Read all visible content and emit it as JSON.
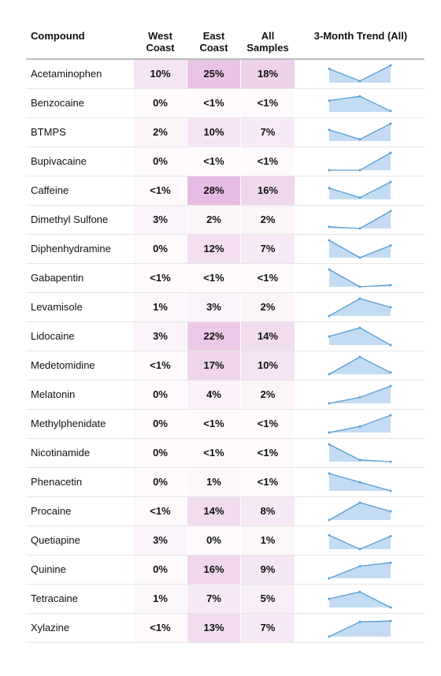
{
  "chart_data": {
    "type": "table",
    "columns": [
      "Compound",
      "West Coast",
      "East Coast",
      "All Samples",
      "3-Month Trend (All)"
    ],
    "header_lines": {
      "compound": "Compound",
      "west": [
        "West",
        "Coast"
      ],
      "east": [
        "East",
        "Coast"
      ],
      "all": [
        "All",
        "Samples"
      ],
      "trend": "3-Month Trend (All)"
    },
    "colors": {
      "heat_max": "#c86fbf",
      "spark_line": "#5a9fd4",
      "spark_fill": "#c3dcf3"
    },
    "rows": [
      {
        "compound": "Acetaminophen",
        "west": "10%",
        "east": "25%",
        "all": "18%",
        "trend": [
          0.8,
          0.1,
          1.0
        ]
      },
      {
        "compound": "Benzocaine",
        "west": "0%",
        "east": "<1%",
        "all": "<1%",
        "trend": [
          0.65,
          0.9,
          0.05
        ]
      },
      {
        "compound": "BTMPS",
        "west": "2%",
        "east": "10%",
        "all": "7%",
        "trend": [
          0.65,
          0.1,
          1.0
        ]
      },
      {
        "compound": "Bupivacaine",
        "west": "0%",
        "east": "<1%",
        "all": "<1%",
        "trend": [
          0.0,
          0.0,
          1.0
        ]
      },
      {
        "compound": "Caffeine",
        "west": "<1%",
        "east": "28%",
        "all": "16%",
        "trend": [
          0.65,
          0.1,
          1.0
        ]
      },
      {
        "compound": "Dimethyl Sulfone",
        "west": "3%",
        "east": "2%",
        "all": "2%",
        "trend": [
          0.1,
          0.0,
          1.0
        ]
      },
      {
        "compound": "Diphenhydramine",
        "west": "0%",
        "east": "12%",
        "all": "7%",
        "trend": [
          1.0,
          0.0,
          0.7
        ]
      },
      {
        "compound": "Gabapentin",
        "west": "<1%",
        "east": "<1%",
        "all": "<1%",
        "trend": [
          1.0,
          0.0,
          0.1
        ]
      },
      {
        "compound": "Levamisole",
        "west": "1%",
        "east": "3%",
        "all": "2%",
        "trend": [
          0.0,
          1.0,
          0.5
        ]
      },
      {
        "compound": "Lidocaine",
        "west": "3%",
        "east": "22%",
        "all": "14%",
        "trend": [
          0.5,
          1.0,
          0.0
        ]
      },
      {
        "compound": "Medetomidine",
        "west": "<1%",
        "east": "17%",
        "all": "10%",
        "trend": [
          0.0,
          1.0,
          0.1
        ]
      },
      {
        "compound": "Melatonin",
        "west": "0%",
        "east": "4%",
        "all": "2%",
        "trend": [
          0.0,
          0.35,
          1.0
        ]
      },
      {
        "compound": "Methylphenidate",
        "west": "0%",
        "east": "<1%",
        "all": "<1%",
        "trend": [
          0.0,
          0.35,
          1.0
        ]
      },
      {
        "compound": "Nicotinamide",
        "west": "0%",
        "east": "<1%",
        "all": "<1%",
        "trend": [
          1.0,
          0.1,
          0.0
        ]
      },
      {
        "compound": "Phenacetin",
        "west": "0%",
        "east": "1%",
        "all": "<1%",
        "trend": [
          1.0,
          0.5,
          0.0
        ]
      },
      {
        "compound": "Procaine",
        "west": "<1%",
        "east": "14%",
        "all": "8%",
        "trend": [
          0.0,
          1.0,
          0.5
        ]
      },
      {
        "compound": "Quetiapine",
        "west": "3%",
        "east": "0%",
        "all": "1%",
        "trend": [
          0.8,
          0.0,
          0.75
        ]
      },
      {
        "compound": "Quinine",
        "west": "0%",
        "east": "16%",
        "all": "9%",
        "trend": [
          0.0,
          0.7,
          0.9
        ]
      },
      {
        "compound": "Tetracaine",
        "west": "1%",
        "east": "7%",
        "all": "5%",
        "trend": [
          0.5,
          0.9,
          0.0
        ]
      },
      {
        "compound": "Xylazine",
        "west": "<1%",
        "east": "13%",
        "all": "7%",
        "trend": [
          0.0,
          0.85,
          0.9
        ]
      }
    ]
  }
}
